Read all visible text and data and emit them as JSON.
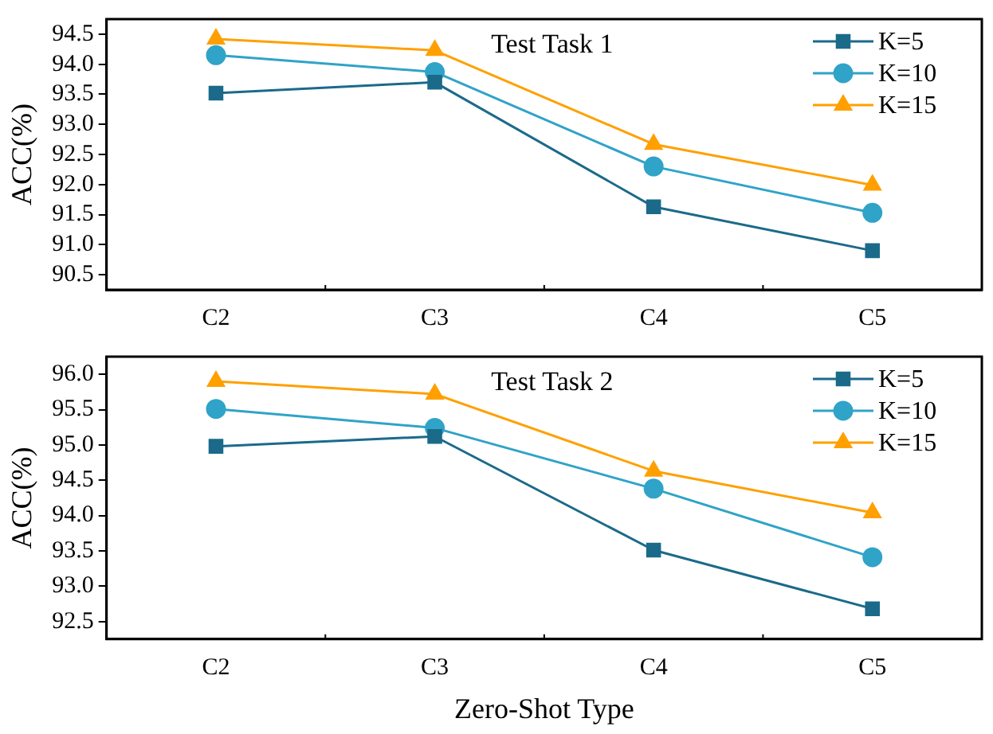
{
  "chart_data": [
    {
      "type": "line",
      "title": "Test Task 1",
      "ylabel": "ACC(%)",
      "categories": [
        "C2",
        "C3",
        "C4",
        "C5"
      ],
      "ylim": [
        90.25,
        94.75
      ],
      "yticks": [
        90.5,
        "91.0",
        91.5,
        "92.0",
        92.5,
        "93.0",
        93.5,
        "94.0",
        94.5
      ],
      "legend": "top right",
      "grid": false,
      "series": [
        {
          "name": "K=5",
          "color": "#1b6a8a",
          "marker": "square",
          "values": [
            93.52,
            93.7,
            91.63,
            90.9
          ]
        },
        {
          "name": "K=10",
          "color": "#30a3c8",
          "marker": "circle",
          "values": [
            94.15,
            93.87,
            92.3,
            91.53
          ]
        },
        {
          "name": "K=15",
          "color": "#ffa000",
          "marker": "triangle",
          "values": [
            94.42,
            94.23,
            92.67,
            91.99
          ]
        }
      ]
    },
    {
      "type": "line",
      "title": "Test Task 2",
      "xlabel": "Zero-Shot Type",
      "ylabel": "ACC(%)",
      "categories": [
        "C2",
        "C3",
        "C4",
        "C5"
      ],
      "ylim": [
        92.25,
        96.25
      ],
      "yticks": [
        92.5,
        "93.0",
        93.5,
        "94.0",
        94.5,
        "95.0",
        95.5,
        "96.0"
      ],
      "legend": "top right",
      "grid": false,
      "series": [
        {
          "name": "K=5",
          "color": "#1b6a8a",
          "marker": "square",
          "values": [
            94.98,
            95.12,
            93.51,
            92.68
          ]
        },
        {
          "name": "K=10",
          "color": "#30a3c8",
          "marker": "circle",
          "values": [
            95.51,
            95.24,
            94.38,
            93.41
          ]
        },
        {
          "name": "K=15",
          "color": "#ffa000",
          "marker": "triangle",
          "values": [
            95.9,
            95.72,
            94.63,
            94.04
          ]
        }
      ]
    }
  ]
}
